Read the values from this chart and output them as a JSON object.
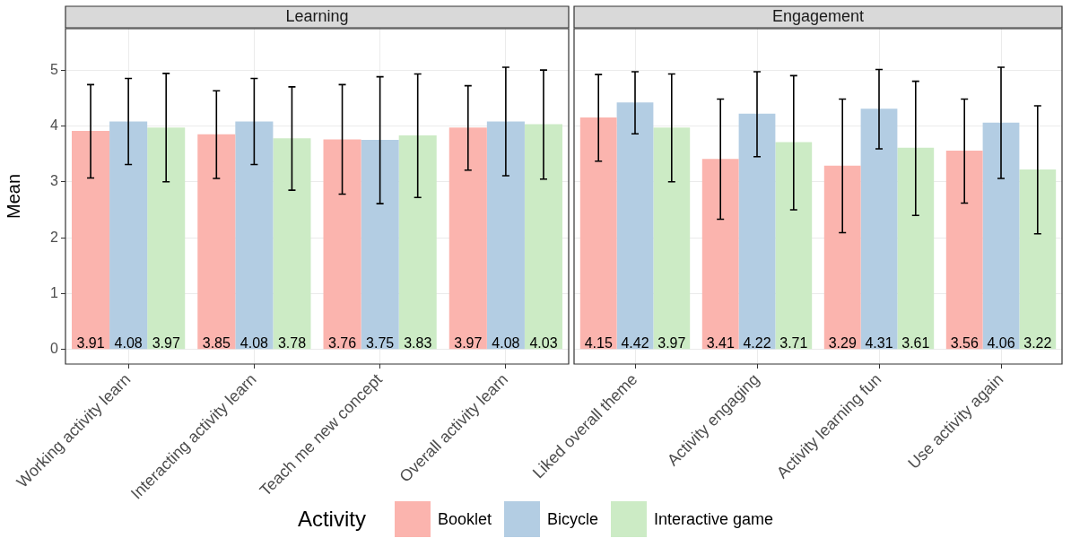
{
  "chart_data": [
    {
      "type": "bar",
      "title": "Learning",
      "ylabel": "Mean",
      "legend_title": "Activity",
      "legend": "bottom",
      "categories": [
        "Working activity learn",
        "Interacting activity learn",
        "Teach me new concept",
        "Overall activity learn"
      ],
      "series": [
        {
          "name": "Booklet",
          "color": "#fbb4ae",
          "values": [
            3.91,
            3.85,
            3.76,
            3.97
          ],
          "errors": [
            [
              3.07,
              4.74
            ],
            [
              3.06,
              4.63
            ],
            [
              2.78,
              4.74
            ],
            [
              3.21,
              4.72
            ]
          ]
        },
        {
          "name": "Bicycle",
          "color": "#b3cde3",
          "values": [
            4.08,
            4.08,
            3.75,
            4.08
          ],
          "errors": [
            [
              3.31,
              4.85
            ],
            [
              3.31,
              4.85
            ],
            [
              2.61,
              4.88
            ],
            [
              3.11,
              5.05
            ]
          ]
        },
        {
          "name": "Interactive game",
          "color": "#ccebc5",
          "values": [
            3.97,
            3.78,
            3.83,
            4.03
          ],
          "errors": [
            [
              3.0,
              4.94
            ],
            [
              2.85,
              4.7
            ],
            [
              2.72,
              4.93
            ],
            [
              3.05,
              5.0
            ]
          ]
        }
      ],
      "ylim": [
        -0.26,
        5.74
      ],
      "yticks": [
        0,
        1,
        2,
        3,
        4,
        5
      ],
      "grid": true,
      "data_labels": true
    },
    {
      "type": "bar",
      "title": "Engagement",
      "categories": [
        "Liked overall theme",
        "Activity engaging",
        "Activity learning fun",
        "Use activity again"
      ],
      "series": [
        {
          "color": "#fbb4ae",
          "values": [
            4.15,
            3.41,
            3.29,
            3.56
          ],
          "errors": [
            [
              3.37,
              4.92
            ],
            [
              2.33,
              4.48
            ],
            [
              2.09,
              4.48
            ],
            [
              2.62,
              4.48
            ]
          ]
        },
        {
          "color": "#b3cde3",
          "values": [
            4.42,
            4.22,
            4.31,
            4.06
          ],
          "errors": [
            [
              3.86,
              4.97
            ],
            [
              3.45,
              4.97
            ],
            [
              3.59,
              5.01
            ],
            [
              3.06,
              5.05
            ]
          ]
        },
        {
          "color": "#ccebc5",
          "values": [
            3.97,
            3.71,
            3.61,
            3.22
          ],
          "errors": [
            [
              3.0,
              4.93
            ],
            [
              2.5,
              4.9
            ],
            [
              2.4,
              4.8
            ],
            [
              2.07,
              4.36
            ]
          ]
        }
      ],
      "ylim": [
        -0.26,
        5.74
      ],
      "yticks": [
        0,
        1,
        2,
        3,
        4,
        5
      ],
      "grid": true,
      "data_labels": true,
      "tick_labels": "x"
    }
  ]
}
